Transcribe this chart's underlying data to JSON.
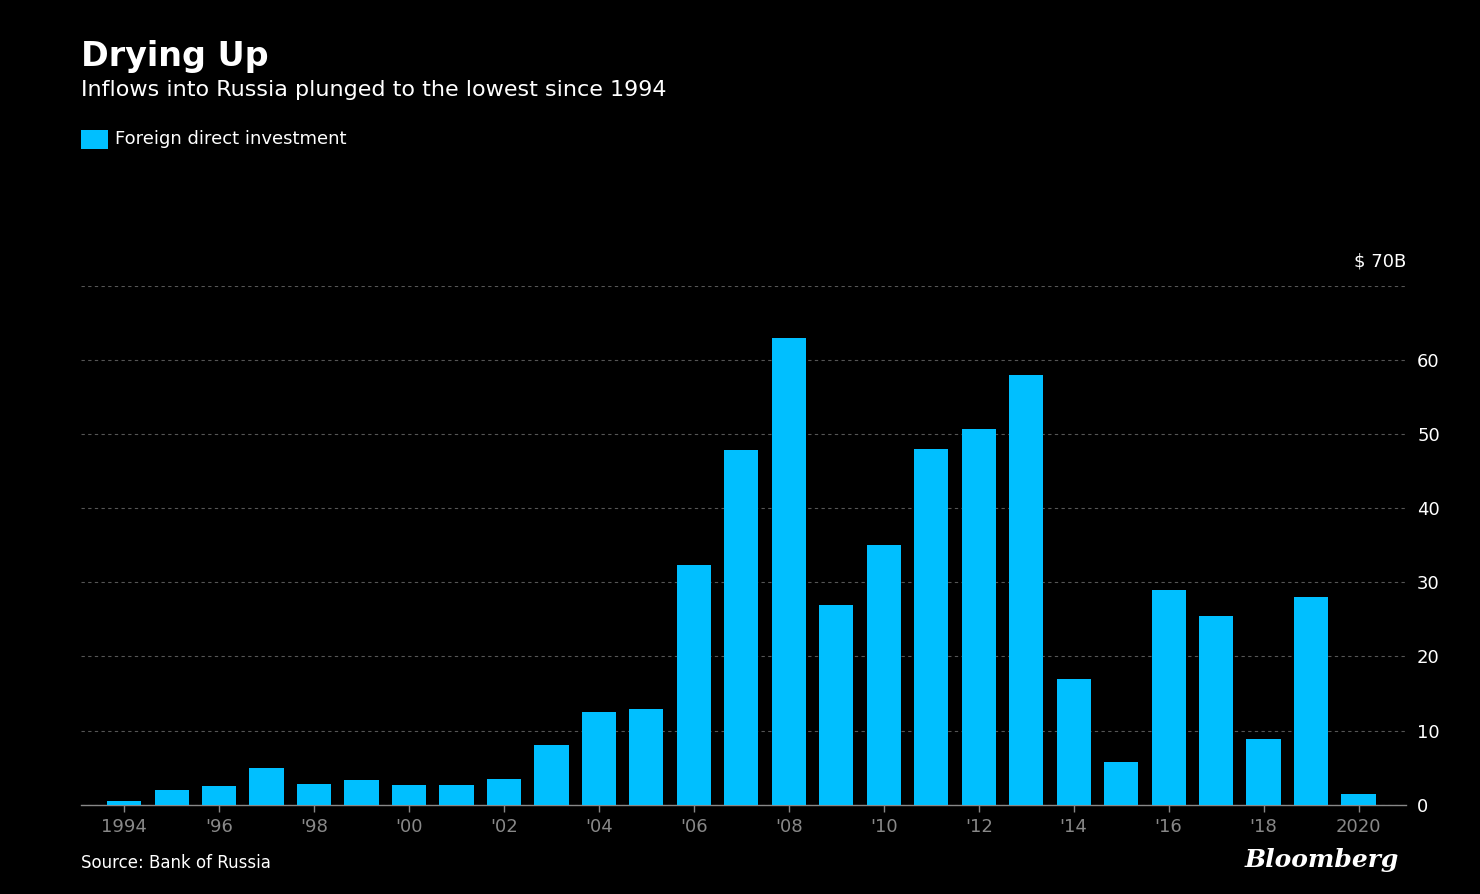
{
  "title_bold": "Drying Up",
  "title_sub": "Inflows into Russia plunged to the lowest since 1994",
  "legend_label": "Foreign direct investment",
  "source": "Source: Bank of Russia",
  "bloomberg": "Bloomberg",
  "years": [
    1994,
    1995,
    1996,
    1997,
    1998,
    1999,
    2000,
    2001,
    2002,
    2003,
    2004,
    2005,
    2006,
    2007,
    2008,
    2009,
    2010,
    2011,
    2012,
    2013,
    2014,
    2015,
    2016,
    2017,
    2018,
    2019,
    2020
  ],
  "values": [
    0.5,
    2.0,
    2.5,
    4.9,
    2.8,
    3.3,
    2.7,
    2.7,
    3.5,
    8.0,
    12.5,
    12.9,
    32.4,
    47.9,
    63.0,
    27.0,
    35.0,
    48.0,
    50.7,
    58.0,
    17.0,
    5.8,
    29.0,
    25.5,
    8.8,
    28.0,
    1.4
  ],
  "bar_color": "#00BFFF",
  "bg_color": "#000000",
  "text_color": "#FFFFFF",
  "grid_color": "#555555",
  "axis_color": "#888888",
  "ylim": [
    0,
    70
  ],
  "yticks": [
    0,
    10,
    20,
    30,
    40,
    50,
    60
  ],
  "ylabel_extra": "$ 70B",
  "xtick_labels": [
    "1994",
    "'96",
    "'98",
    "'00",
    "'02",
    "'04",
    "'06",
    "'08",
    "'10",
    "'12",
    "'14",
    "'16",
    "'18",
    "2020"
  ],
  "xtick_positions": [
    1994,
    1996,
    1998,
    2000,
    2002,
    2004,
    2006,
    2008,
    2010,
    2012,
    2014,
    2016,
    2018,
    2020
  ],
  "xlim": [
    1993.1,
    2021.0
  ]
}
